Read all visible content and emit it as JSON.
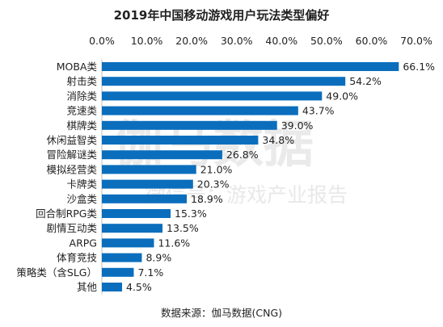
{
  "chart_data": {
    "type": "bar",
    "orientation": "horizontal",
    "title": "2019年中国移动游戏用户玩法类型偏好",
    "categories": [
      "MOBA类",
      "射击类",
      "消除类",
      "竞速类",
      "棋牌类",
      "休闲益智类",
      "冒险解谜类",
      "模拟经营类",
      "卡牌类",
      "沙盒类",
      "回合制RPG类",
      "剧情互动类",
      "ARPG",
      "体育竞技",
      "策略类（含SLG）",
      "其他"
    ],
    "values": [
      66.1,
      54.2,
      49.0,
      43.7,
      39.0,
      34.8,
      26.8,
      21.0,
      20.3,
      18.9,
      15.3,
      13.5,
      11.6,
      8.9,
      7.1,
      4.5
    ],
    "value_labels": [
      "66.1%",
      "54.2%",
      "49.0%",
      "43.7%",
      "39.0%",
      "34.8%",
      "26.8%",
      "21.0%",
      "20.3%",
      "18.9%",
      "15.3%",
      "13.5%",
      "11.6%",
      "8.9%",
      "7.1%",
      "4.5%"
    ],
    "x_ticks": [
      "0.0%",
      "10.0%",
      "20.0%",
      "30.0%",
      "40.0%",
      "50.0%",
      "60.0%",
      "70.0%"
    ],
    "xlim": [
      0,
      70
    ],
    "x_axis_position": "top",
    "grid": false,
    "bar_color": "#0a6ebd",
    "source": "数据来源：伽马数据(CNG)",
    "watermark": [
      "伽马数据",
      "微信号：游戏产业报告"
    ]
  }
}
